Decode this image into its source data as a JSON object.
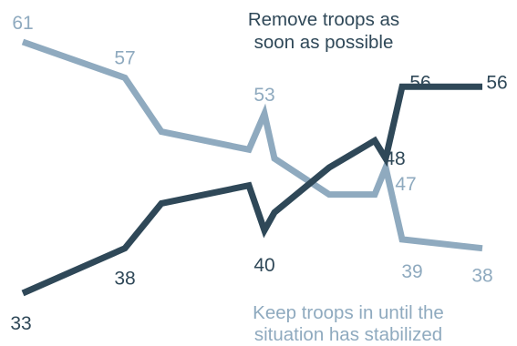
{
  "chart_data": {
    "type": "line",
    "title": "",
    "xlabel": "",
    "ylabel": "",
    "ylim": [
      30,
      63
    ],
    "grid": false,
    "legend": "none",
    "series": [
      {
        "key": "remove",
        "label_lines": [
          "Remove troops as",
          "soon as possible"
        ],
        "color": "#2f4858",
        "values": [
          {
            "x": 0,
            "y": 33,
            "label": "33"
          },
          {
            "x": 1,
            "y": 38,
            "label": "38"
          },
          {
            "x": 2,
            "y": 43
          },
          {
            "x": 3,
            "y": 45
          },
          {
            "x": 4,
            "y": 40,
            "label": "40"
          },
          {
            "x": 5,
            "y": 42
          },
          {
            "x": 6,
            "y": 47
          },
          {
            "x": 7,
            "y": 50
          },
          {
            "x": 8,
            "y": 48,
            "label": "48"
          },
          {
            "x": 9,
            "y": 56,
            "label": "56"
          },
          {
            "x": 10,
            "y": 56,
            "label": "56"
          }
        ]
      },
      {
        "key": "keep",
        "label_lines": [
          "Keep troops in until the",
          "situation has stabilized"
        ],
        "color": "#8faabf",
        "values": [
          {
            "x": 0,
            "y": 61,
            "label": "61"
          },
          {
            "x": 1,
            "y": 57,
            "label": "57"
          },
          {
            "x": 2,
            "y": 51
          },
          {
            "x": 3,
            "y": 49
          },
          {
            "x": 4,
            "y": 53,
            "label": "53"
          },
          {
            "x": 5,
            "y": 48
          },
          {
            "x": 6,
            "y": 44
          },
          {
            "x": 7,
            "y": 44
          },
          {
            "x": 8,
            "y": 47,
            "label": "47"
          },
          {
            "x": 9,
            "y": 39,
            "label": "39"
          },
          {
            "x": 10,
            "y": 38,
            "label": "38"
          }
        ]
      }
    ]
  }
}
